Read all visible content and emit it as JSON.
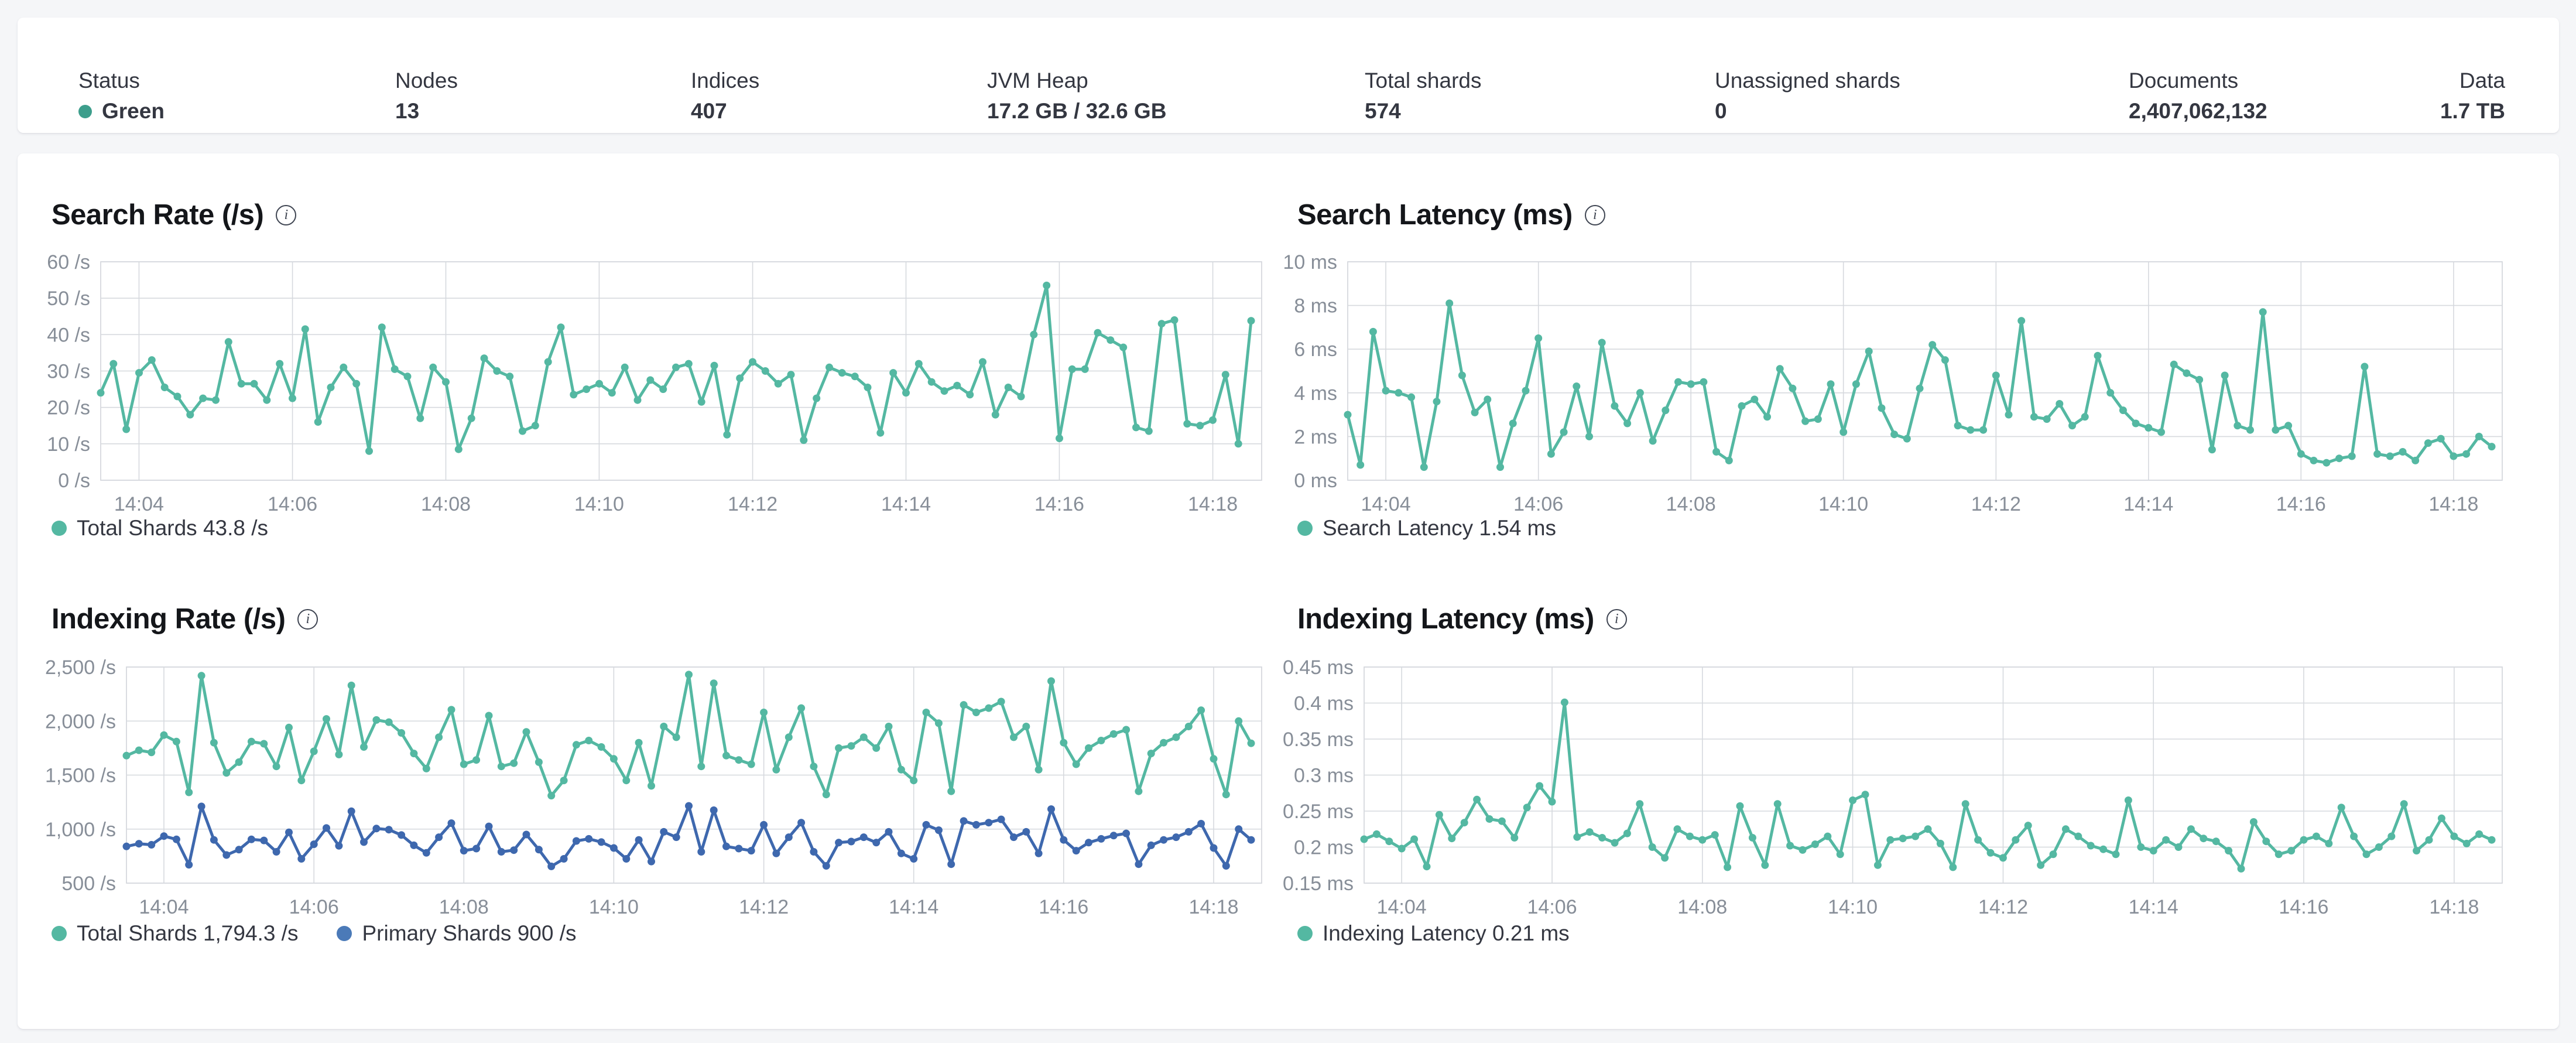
{
  "summary_bar": {
    "stats": [
      {
        "label": "Status",
        "value": "Green",
        "dot_color": "#3d9e8c"
      },
      {
        "label": "Nodes",
        "value": "13"
      },
      {
        "label": "Indices",
        "value": "407"
      },
      {
        "label": "JVM Heap",
        "value": "17.2 GB / 32.6 GB"
      },
      {
        "label": "Total shards",
        "value": "574"
      },
      {
        "label": "Unassigned shards",
        "value": "0"
      },
      {
        "label": "Documents",
        "value": "2,407,062,132"
      },
      {
        "label": "Data",
        "value": "1.7 TB"
      }
    ]
  },
  "icons": {
    "info": "info-icon",
    "health": "health-dot-icon",
    "legend_dot": "legend-dot-icon"
  },
  "colors": {
    "teal": "#54b8a2",
    "blue": "#3e68ae",
    "blue_dot": "#4b7ab8",
    "grid": "#d6d9de",
    "tick_text": "#878e98",
    "title": "#14161a",
    "text": "#343741",
    "card": "#ffffff",
    "page_bg": "#f5f6f8",
    "status_green": "#3d9e8c"
  },
  "chart_data": [
    {
      "type": "line",
      "title": "Search Rate (/s)",
      "ylabel": "/s",
      "ylim": [
        0,
        60
      ],
      "grid": true,
      "legend_position": "bottom-left",
      "y_ticks": [
        {
          "v": 0,
          "label": "0 /s"
        },
        {
          "v": 10,
          "label": "10 /s"
        },
        {
          "v": 20,
          "label": "20 /s"
        },
        {
          "v": 30,
          "label": "30 /s"
        },
        {
          "v": 40,
          "label": "40 /s"
        },
        {
          "v": 50,
          "label": "50 /s"
        },
        {
          "v": 60,
          "label": "60 /s"
        }
      ],
      "x_ticks": [
        {
          "label": "14:04",
          "f": 0.0333
        },
        {
          "label": "14:06",
          "f": 0.1667
        },
        {
          "label": "14:08",
          "f": 0.3
        },
        {
          "label": "14:10",
          "f": 0.4333
        },
        {
          "label": "14:12",
          "f": 0.5667
        },
        {
          "label": "14:14",
          "f": 0.7
        },
        {
          "label": "14:16",
          "f": 0.8333
        },
        {
          "label": "14:18",
          "f": 0.9667
        }
      ],
      "series": [
        {
          "name": "Total Shards",
          "legend_label": "Total Shards 43.8 /s",
          "color": "#54b8a2",
          "dot_color": "#54b8a2",
          "values": [
            24,
            32,
            14,
            29.5,
            33,
            25.5,
            23,
            18,
            22.5,
            22,
            38,
            26.5,
            26.5,
            22,
            32,
            22.5,
            41.5,
            16,
            25.5,
            31,
            26.5,
            8,
            42,
            30.5,
            28.5,
            17,
            31,
            27,
            8.5,
            17,
            33.5,
            30,
            28.5,
            13.5,
            15,
            32.5,
            42,
            23.5,
            25,
            26.5,
            24,
            31,
            22,
            27.5,
            25,
            31,
            32,
            21.5,
            31.5,
            12.5,
            28,
            32.5,
            30,
            26.5,
            29,
            11,
            22.5,
            31,
            29.5,
            28.5,
            25.5,
            13,
            29.5,
            24,
            32,
            27,
            24.5,
            26,
            23.5,
            32.5,
            18,
            25.5,
            23,
            40,
            53.5,
            11.5,
            30.5,
            30.5,
            40.5,
            38.5,
            36.5,
            14.5,
            13.5,
            43,
            44,
            15.5,
            15,
            16.5,
            29,
            10,
            43.8
          ]
        }
      ]
    },
    {
      "type": "line",
      "title": "Search Latency (ms)",
      "ylabel": "ms",
      "ylim": [
        0,
        10
      ],
      "grid": true,
      "legend_position": "bottom-left",
      "y_ticks": [
        {
          "v": 0,
          "label": "0 ms"
        },
        {
          "v": 2,
          "label": "2 ms"
        },
        {
          "v": 4,
          "label": "4 ms"
        },
        {
          "v": 6,
          "label": "6 ms"
        },
        {
          "v": 8,
          "label": "8 ms"
        },
        {
          "v": 10,
          "label": "10 ms"
        }
      ],
      "x_ticks": [
        {
          "label": "14:04",
          "f": 0.0333
        },
        {
          "label": "14:06",
          "f": 0.1667
        },
        {
          "label": "14:08",
          "f": 0.3
        },
        {
          "label": "14:10",
          "f": 0.4333
        },
        {
          "label": "14:12",
          "f": 0.5667
        },
        {
          "label": "14:14",
          "f": 0.7
        },
        {
          "label": "14:16",
          "f": 0.8333
        },
        {
          "label": "14:18",
          "f": 0.9667
        }
      ],
      "series": [
        {
          "name": "Search Latency",
          "legend_label": "Search Latency 1.54 ms",
          "color": "#54b8a2",
          "dot_color": "#54b8a2",
          "values": [
            3,
            0.7,
            6.8,
            4.1,
            4,
            3.8,
            0.6,
            3.6,
            8.1,
            4.8,
            3.1,
            3.7,
            0.6,
            2.6,
            4.1,
            6.5,
            1.2,
            2.2,
            4.3,
            2,
            6.3,
            3.4,
            2.6,
            4,
            1.8,
            3.2,
            4.5,
            4.4,
            4.5,
            1.3,
            0.9,
            3.4,
            3.7,
            2.9,
            5.1,
            4.2,
            2.7,
            2.8,
            4.4,
            2.2,
            4.4,
            5.9,
            3.3,
            2.1,
            1.9,
            4.2,
            6.2,
            5.5,
            2.5,
            2.3,
            2.3,
            4.8,
            3,
            7.3,
            2.9,
            2.8,
            3.5,
            2.5,
            2.9,
            5.7,
            4,
            3.2,
            2.6,
            2.4,
            2.2,
            5.3,
            4.9,
            4.6,
            1.4,
            4.8,
            2.5,
            2.3,
            7.7,
            2.3,
            2.5,
            1.2,
            0.9,
            0.8,
            1,
            1.1,
            5.2,
            1.2,
            1.1,
            1.3,
            0.9,
            1.7,
            1.9,
            1.1,
            1.2,
            2,
            1.54
          ]
        }
      ]
    },
    {
      "type": "line",
      "title": "Indexing Rate (/s)",
      "ylabel": "/s",
      "ylim": [
        500,
        2500
      ],
      "grid": true,
      "legend_position": "bottom-left",
      "y_ticks": [
        {
          "v": 500,
          "label": "500 /s"
        },
        {
          "v": 1000,
          "label": "1,000 /s"
        },
        {
          "v": 1500,
          "label": "1,500 /s"
        },
        {
          "v": 2000,
          "label": "2,000 /s"
        },
        {
          "v": 2500,
          "label": "2,500 /s"
        }
      ],
      "x_ticks": [
        {
          "label": "14:04",
          "f": 0.0333
        },
        {
          "label": "14:06",
          "f": 0.1667
        },
        {
          "label": "14:08",
          "f": 0.3
        },
        {
          "label": "14:10",
          "f": 0.4333
        },
        {
          "label": "14:12",
          "f": 0.5667
        },
        {
          "label": "14:14",
          "f": 0.7
        },
        {
          "label": "14:16",
          "f": 0.8333
        },
        {
          "label": "14:18",
          "f": 0.9667
        }
      ],
      "series": [
        {
          "name": "Total Shards",
          "legend_label": "Total Shards 1,794.3 /s",
          "color": "#54b8a2",
          "dot_color": "#54b8a2",
          "values": [
            1680,
            1730,
            1710,
            1870,
            1810,
            1340,
            2420,
            1800,
            1520,
            1620,
            1810,
            1790,
            1580,
            1940,
            1450,
            1720,
            2020,
            1690,
            2330,
            1760,
            2010,
            1990,
            1890,
            1700,
            1560,
            1850,
            2105,
            1600,
            1640,
            2050,
            1580,
            1610,
            1900,
            1620,
            1310,
            1450,
            1780,
            1820,
            1760,
            1650,
            1450,
            1800,
            1400,
            1950,
            1850,
            2430,
            1580,
            2350,
            1680,
            1640,
            1600,
            2080,
            1550,
            1850,
            2120,
            1580,
            1320,
            1750,
            1770,
            1850,
            1750,
            1950,
            1550,
            1450,
            2080,
            1980,
            1350,
            2150,
            2080,
            2120,
            2180,
            1850,
            1950,
            1550,
            2370,
            1800,
            1600,
            1750,
            1820,
            1880,
            1920,
            1350,
            1700,
            1800,
            1850,
            1950,
            2100,
            1650,
            1320,
            2000,
            1794.3
          ]
        },
        {
          "name": "Primary Shards",
          "legend_label": "Primary Shards 900 /s",
          "color": "#3e68ae",
          "dot_color": "#4b7ab8",
          "values": [
            840,
            865,
            855,
            935,
            905,
            670,
            1210,
            900,
            760,
            810,
            905,
            895,
            790,
            970,
            725,
            860,
            1010,
            845,
            1165,
            880,
            1005,
            995,
            945,
            850,
            780,
            925,
            1055,
            800,
            820,
            1025,
            790,
            805,
            950,
            810,
            655,
            725,
            890,
            910,
            880,
            825,
            725,
            900,
            700,
            975,
            925,
            1215,
            790,
            1175,
            840,
            820,
            800,
            1040,
            775,
            925,
            1060,
            790,
            660,
            875,
            885,
            925,
            875,
            975,
            775,
            725,
            1040,
            990,
            675,
            1075,
            1040,
            1060,
            1090,
            925,
            975,
            775,
            1185,
            900,
            800,
            875,
            910,
            940,
            960,
            675,
            850,
            900,
            925,
            975,
            1050,
            825,
            660,
            1000,
            900
          ]
        }
      ]
    },
    {
      "type": "line",
      "title": "Indexing Latency (ms)",
      "ylabel": "ms",
      "ylim": [
        0.15,
        0.45
      ],
      "grid": true,
      "legend_position": "bottom-left",
      "y_ticks": [
        {
          "v": 0.15,
          "label": "0.15 ms"
        },
        {
          "v": 0.2,
          "label": "0.2 ms"
        },
        {
          "v": 0.25,
          "label": "0.25 ms"
        },
        {
          "v": 0.3,
          "label": "0.3 ms"
        },
        {
          "v": 0.35,
          "label": "0.35 ms"
        },
        {
          "v": 0.4,
          "label": "0.4 ms"
        },
        {
          "v": 0.45,
          "label": "0.45 ms"
        }
      ],
      "x_ticks": [
        {
          "label": "14:04",
          "f": 0.0333
        },
        {
          "label": "14:06",
          "f": 0.1667
        },
        {
          "label": "14:08",
          "f": 0.3
        },
        {
          "label": "14:10",
          "f": 0.4333
        },
        {
          "label": "14:12",
          "f": 0.5667
        },
        {
          "label": "14:14",
          "f": 0.7
        },
        {
          "label": "14:16",
          "f": 0.8333
        },
        {
          "label": "14:18",
          "f": 0.9667
        }
      ],
      "series": [
        {
          "name": "Indexing Latency",
          "legend_label": "Indexing Latency 0.21 ms",
          "color": "#54b8a2",
          "dot_color": "#54b8a2",
          "values": [
            0.211,
            0.218,
            0.208,
            0.198,
            0.211,
            0.173,
            0.245,
            0.212,
            0.234,
            0.266,
            0.239,
            0.236,
            0.213,
            0.255,
            0.285,
            0.263,
            0.401,
            0.214,
            0.221,
            0.213,
            0.206,
            0.219,
            0.26,
            0.2,
            0.185,
            0.225,
            0.215,
            0.21,
            0.217,
            0.172,
            0.257,
            0.213,
            0.175,
            0.26,
            0.202,
            0.196,
            0.204,
            0.215,
            0.19,
            0.265,
            0.273,
            0.175,
            0.21,
            0.212,
            0.215,
            0.225,
            0.205,
            0.172,
            0.26,
            0.21,
            0.192,
            0.185,
            0.21,
            0.23,
            0.175,
            0.19,
            0.225,
            0.215,
            0.202,
            0.197,
            0.19,
            0.265,
            0.2,
            0.195,
            0.21,
            0.2,
            0.225,
            0.212,
            0.208,
            0.195,
            0.17,
            0.235,
            0.208,
            0.19,
            0.195,
            0.21,
            0.215,
            0.205,
            0.255,
            0.215,
            0.19,
            0.2,
            0.215,
            0.26,
            0.195,
            0.21,
            0.24,
            0.215,
            0.205,
            0.218,
            0.21
          ]
        }
      ]
    }
  ]
}
